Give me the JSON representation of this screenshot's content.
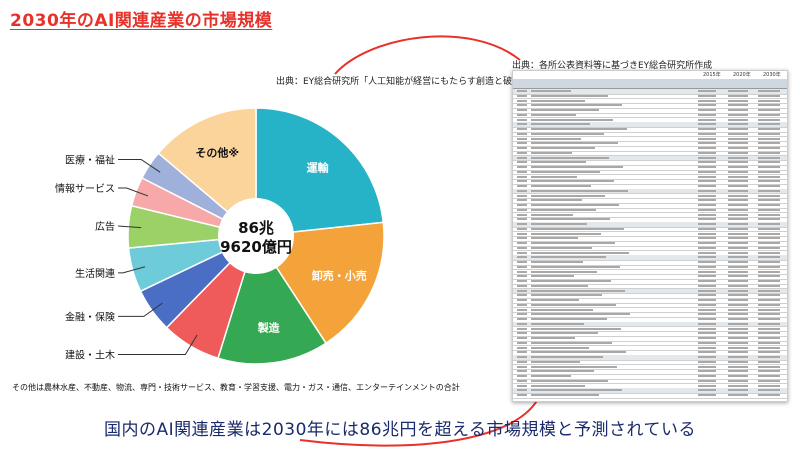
{
  "page_title": "2030年のAI関連産業の市場規模",
  "source_left": "出典：EY総合研究所「人工知能が経営にもたらす創造と破壊」",
  "source_right": "出典：各所公表資料等に基づきEY総合研究所作成",
  "note": "その他は農林水産、不動産、物流、専門・技術サービス、教育・学習支援、電力・ガス・通信、エンターテインメントの合計",
  "bottom_text": "国内のAI関連産業は2030年には86兆円を超える市場規模と予測されている",
  "table_years": [
    "2015年",
    "2020年",
    "2030年"
  ],
  "colors": {
    "title": "#e8312a",
    "bottom": "#1a2a6c",
    "arc": "#e8312a"
  },
  "chart_data": {
    "type": "pie",
    "title": "",
    "center_label_line1": "86兆",
    "center_label_line2": "9620億円",
    "unit": "億円",
    "total": 869620,
    "slices": [
      {
        "label": "運輸",
        "value": 23.3,
        "color": "#27b3c7",
        "label_inside": true
      },
      {
        "label": "卸売・小売",
        "value": 17.5,
        "color": "#f3a33a",
        "label_inside": true
      },
      {
        "label": "製造",
        "value": 14.0,
        "color": "#35a853",
        "label_inside": true
      },
      {
        "label": "建設・土木",
        "value": 7.5,
        "color": "#ef5a5a",
        "label_inside": false
      },
      {
        "label": "金融・保険",
        "value": 5.6,
        "color": "#4a6ec4",
        "label_inside": false
      },
      {
        "label": "生活関連",
        "value": 5.6,
        "color": "#6ecbd9",
        "label_inside": false
      },
      {
        "label": "広告",
        "value": 5.3,
        "color": "#9bd166",
        "label_inside": false
      },
      {
        "label": "情報サービス",
        "value": 3.7,
        "color": "#f7a9a9",
        "label_inside": false
      },
      {
        "label": "医療・福祉",
        "value": 3.7,
        "color": "#9fb0da",
        "label_inside": false
      },
      {
        "label": "その他",
        "value": 13.8,
        "color": "#fbd49b",
        "label_inside": true,
        "label_suffix": "※"
      }
    ]
  }
}
